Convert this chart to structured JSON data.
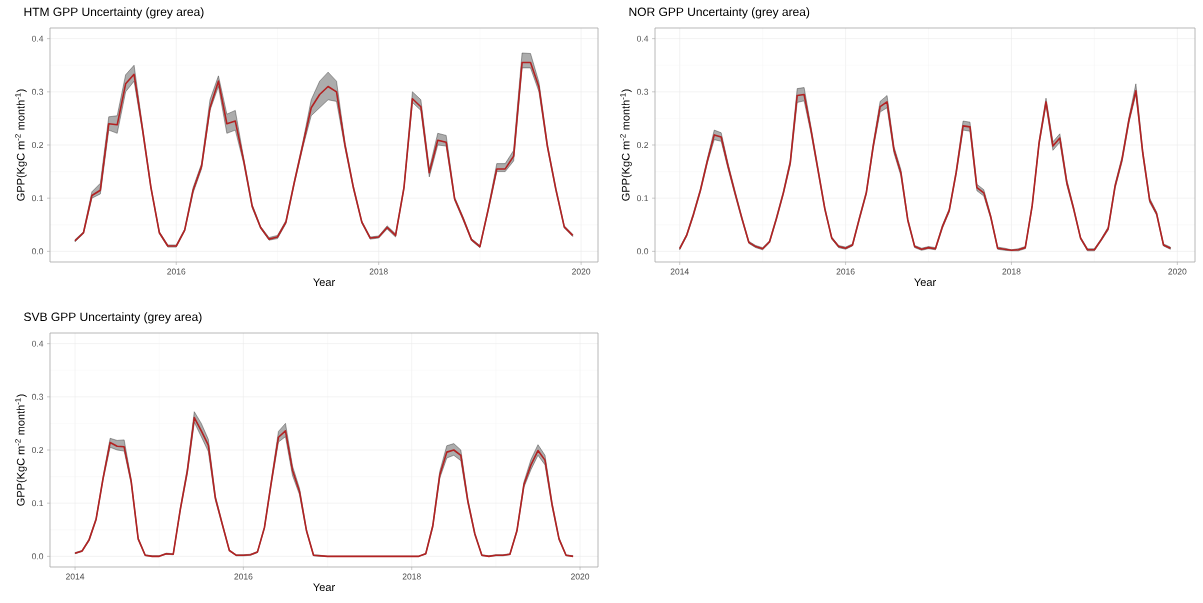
{
  "chart_data": [
    {
      "type": "line",
      "title": "HTM GPP Uncertainty (grey area)",
      "xlabel": "Year",
      "ylabel": "GPP(KgC m$^{-2}$ month$^{-1}$)",
      "x": [
        "2015-01",
        "2015-02",
        "2015-03",
        "2015-04",
        "2015-05",
        "2015-06",
        "2015-07",
        "2015-08",
        "2015-09",
        "2015-10",
        "2015-11",
        "2015-12",
        "2016-01",
        "2016-02",
        "2016-03",
        "2016-04",
        "2016-05",
        "2016-06",
        "2016-07",
        "2016-08",
        "2016-09",
        "2016-10",
        "2016-11",
        "2016-12",
        "2017-01",
        "2017-02",
        "2017-03",
        "2017-04",
        "2017-05",
        "2017-06",
        "2017-07",
        "2017-08",
        "2017-09",
        "2017-10",
        "2017-11",
        "2017-12",
        "2018-01",
        "2018-02",
        "2018-03",
        "2018-04",
        "2018-05",
        "2018-06",
        "2018-07",
        "2018-08",
        "2018-09",
        "2018-10",
        "2018-11",
        "2018-12",
        "2019-01",
        "2019-02",
        "2019-03",
        "2019-04",
        "2019-05",
        "2019-06",
        "2019-07",
        "2019-08",
        "2019-09",
        "2019-10",
        "2019-11",
        "2019-12"
      ],
      "series": [
        {
          "color": "#b22222",
          "values": [
            0.02,
            0.035,
            0.105,
            0.115,
            0.24,
            0.238,
            0.315,
            0.333,
            0.23,
            0.12,
            0.035,
            0.01,
            0.01,
            0.04,
            0.115,
            0.16,
            0.27,
            0.32,
            0.24,
            0.245,
            0.17,
            0.085,
            0.045,
            0.023,
            0.027,
            0.055,
            0.13,
            0.2,
            0.27,
            0.295,
            0.31,
            0.3,
            0.2,
            0.12,
            0.055,
            0.025,
            0.027,
            0.045,
            0.03,
            0.12,
            0.287,
            0.272,
            0.148,
            0.209,
            0.205,
            0.099,
            0.062,
            0.022,
            0.009,
            0.08,
            0.155,
            0.155,
            0.179,
            0.355,
            0.355,
            0.309,
            0.198,
            0.117,
            0.046,
            0.03
          ],
          "lower": [
            0.018,
            0.033,
            0.1,
            0.108,
            0.228,
            0.222,
            0.3,
            0.32,
            0.225,
            0.117,
            0.033,
            0.008,
            0.008,
            0.038,
            0.11,
            0.155,
            0.265,
            0.31,
            0.222,
            0.228,
            0.165,
            0.082,
            0.043,
            0.021,
            0.024,
            0.052,
            0.127,
            0.195,
            0.255,
            0.27,
            0.285,
            0.282,
            0.195,
            0.117,
            0.053,
            0.023,
            0.025,
            0.042,
            0.027,
            0.117,
            0.28,
            0.265,
            0.14,
            0.2,
            0.198,
            0.096,
            0.059,
            0.02,
            0.007,
            0.077,
            0.15,
            0.15,
            0.17,
            0.345,
            0.345,
            0.3,
            0.194,
            0.114,
            0.044,
            0.028
          ],
          "upper": [
            0.022,
            0.037,
            0.112,
            0.128,
            0.253,
            0.255,
            0.332,
            0.35,
            0.235,
            0.123,
            0.037,
            0.012,
            0.012,
            0.042,
            0.12,
            0.165,
            0.285,
            0.33,
            0.258,
            0.265,
            0.175,
            0.088,
            0.047,
            0.026,
            0.03,
            0.058,
            0.133,
            0.205,
            0.285,
            0.32,
            0.337,
            0.32,
            0.205,
            0.123,
            0.057,
            0.027,
            0.029,
            0.048,
            0.033,
            0.123,
            0.3,
            0.285,
            0.155,
            0.222,
            0.218,
            0.102,
            0.065,
            0.024,
            0.011,
            0.083,
            0.165,
            0.165,
            0.19,
            0.373,
            0.372,
            0.318,
            0.202,
            0.12,
            0.048,
            0.032
          ]
        }
      ],
      "xlim": [
        "2014-10-02",
        "2020-03-01"
      ],
      "xticks": [
        "2016",
        "2018",
        "2020"
      ],
      "ylim": [
        -0.02,
        0.42
      ],
      "yticks": [
        {
          "value": 0,
          "label": "0.0"
        },
        {
          "value": 0.1,
          "label": "0.1"
        },
        {
          "value": 0.2,
          "label": "0.2"
        },
        {
          "value": 0.3,
          "label": "0.3"
        },
        {
          "value": 0.4,
          "label": "0.4"
        }
      ],
      "grid": true
    },
    {
      "type": "line",
      "title": "NOR GPP Uncertainty (grey area)",
      "xlabel": "Year",
      "ylabel": "GPP(KgC m$^{-2}$ month$^{-1}$)",
      "x": [
        "2014-01",
        "2014-02",
        "2014-03",
        "2014-04",
        "2014-05",
        "2014-06",
        "2014-07",
        "2014-08",
        "2014-09",
        "2014-10",
        "2014-11",
        "2014-12",
        "2015-01",
        "2015-02",
        "2015-03",
        "2015-04",
        "2015-05",
        "2015-06",
        "2015-07",
        "2015-08",
        "2015-09",
        "2015-10",
        "2015-11",
        "2015-12",
        "2016-01",
        "2016-02",
        "2016-03",
        "2016-04",
        "2016-05",
        "2016-06",
        "2016-07",
        "2016-08",
        "2016-09",
        "2016-10",
        "2016-11",
        "2016-12",
        "2017-01",
        "2017-02",
        "2017-03",
        "2017-04",
        "2017-05",
        "2017-06",
        "2017-07",
        "2017-08",
        "2017-09",
        "2017-10",
        "2017-11",
        "2017-12",
        "2018-01",
        "2018-02",
        "2018-03",
        "2018-04",
        "2018-05",
        "2018-06",
        "2018-07",
        "2018-08",
        "2018-09",
        "2018-10",
        "2018-11",
        "2018-12",
        "2019-01",
        "2019-02",
        "2019-03",
        "2019-04",
        "2019-05",
        "2019-06",
        "2019-07",
        "2019-08",
        "2019-09",
        "2019-10",
        "2019-11",
        "2019-12"
      ],
      "series": [
        {
          "color": "#b22222",
          "values": [
            0.005,
            0.03,
            0.07,
            0.115,
            0.17,
            0.219,
            0.215,
            0.16,
            0.11,
            0.062,
            0.017,
            0.009,
            0.005,
            0.018,
            0.062,
            0.11,
            0.167,
            0.293,
            0.295,
            0.228,
            0.154,
            0.08,
            0.025,
            0.009,
            0.006,
            0.012,
            0.062,
            0.11,
            0.198,
            0.272,
            0.281,
            0.191,
            0.148,
            0.059,
            0.009,
            0.004,
            0.007,
            0.005,
            0.046,
            0.077,
            0.148,
            0.236,
            0.234,
            0.12,
            0.11,
            0.065,
            0.006,
            0.004,
            0.002,
            0.003,
            0.007,
            0.086,
            0.204,
            0.281,
            0.198,
            0.213,
            0.13,
            0.08,
            0.025,
            0.003,
            0.003,
            0.022,
            0.043,
            0.123,
            0.173,
            0.247,
            0.302,
            0.185,
            0.096,
            0.071,
            0.012,
            0.006
          ],
          "lower": [
            0.003,
            0.028,
            0.067,
            0.112,
            0.166,
            0.21,
            0.207,
            0.155,
            0.106,
            0.059,
            0.015,
            0.007,
            0.003,
            0.016,
            0.059,
            0.107,
            0.162,
            0.28,
            0.283,
            0.222,
            0.15,
            0.077,
            0.023,
            0.007,
            0.004,
            0.01,
            0.059,
            0.107,
            0.193,
            0.262,
            0.27,
            0.185,
            0.142,
            0.056,
            0.007,
            0.002,
            0.005,
            0.003,
            0.043,
            0.074,
            0.144,
            0.228,
            0.226,
            0.114,
            0.104,
            0.062,
            0.004,
            0.002,
            0.001,
            0.001,
            0.005,
            0.083,
            0.2,
            0.275,
            0.19,
            0.205,
            0.125,
            0.077,
            0.023,
            0.001,
            0.001,
            0.02,
            0.04,
            0.119,
            0.168,
            0.242,
            0.295,
            0.18,
            0.092,
            0.068,
            0.01,
            0.004
          ],
          "upper": [
            0.007,
            0.032,
            0.073,
            0.118,
            0.174,
            0.228,
            0.223,
            0.165,
            0.114,
            0.065,
            0.019,
            0.011,
            0.007,
            0.02,
            0.065,
            0.113,
            0.172,
            0.306,
            0.308,
            0.234,
            0.158,
            0.083,
            0.027,
            0.011,
            0.008,
            0.014,
            0.065,
            0.113,
            0.203,
            0.282,
            0.293,
            0.197,
            0.154,
            0.062,
            0.011,
            0.006,
            0.009,
            0.007,
            0.049,
            0.08,
            0.152,
            0.245,
            0.243,
            0.126,
            0.116,
            0.068,
            0.008,
            0.006,
            0.003,
            0.005,
            0.009,
            0.089,
            0.208,
            0.288,
            0.206,
            0.221,
            0.135,
            0.083,
            0.027,
            0.005,
            0.005,
            0.024,
            0.046,
            0.127,
            0.178,
            0.252,
            0.315,
            0.19,
            0.1,
            0.074,
            0.014,
            0.008
          ]
        }
      ],
      "xlim": [
        "2013-09-14",
        "2020-03-18"
      ],
      "xticks": [
        "2014",
        "2016",
        "2018",
        "2020"
      ],
      "ylim": [
        -0.02,
        0.42
      ],
      "yticks": [
        {
          "value": 0,
          "label": "0.0"
        },
        {
          "value": 0.1,
          "label": "0.1"
        },
        {
          "value": 0.2,
          "label": "0.2"
        },
        {
          "value": 0.3,
          "label": "0.3"
        },
        {
          "value": 0.4,
          "label": "0.4"
        }
      ],
      "grid": true
    },
    {
      "type": "line",
      "title": "SVB GPP Uncertainty (grey area)",
      "xlabel": "Year",
      "ylabel": "GPP(KgC m$^{-2}$ month$^{-1}$)",
      "x": [
        "2014-01",
        "2014-02",
        "2014-03",
        "2014-04",
        "2014-05",
        "2014-06",
        "2014-07",
        "2014-08",
        "2014-09",
        "2014-10",
        "2014-11",
        "2014-12",
        "2015-01",
        "2015-02",
        "2015-03",
        "2015-04",
        "2015-05",
        "2015-06",
        "2015-07",
        "2015-08",
        "2015-09",
        "2015-10",
        "2015-11",
        "2015-12",
        "2016-01",
        "2016-02",
        "2016-03",
        "2016-04",
        "2016-05",
        "2016-06",
        "2016-07",
        "2016-08",
        "2016-09",
        "2016-10",
        "2016-11",
        "2016-12",
        "2017-01",
        "2017-02",
        "2017-03",
        "2017-04",
        "2017-05",
        "2017-06",
        "2017-07",
        "2017-08",
        "2017-09",
        "2017-10",
        "2017-11",
        "2017-12",
        "2018-01",
        "2018-02",
        "2018-03",
        "2018-04",
        "2018-05",
        "2018-06",
        "2018-07",
        "2018-08",
        "2018-09",
        "2018-10",
        "2018-11",
        "2018-12",
        "2019-01",
        "2019-02",
        "2019-03",
        "2019-04",
        "2019-05",
        "2019-06",
        "2019-07",
        "2019-08",
        "2019-09",
        "2019-10",
        "2019-11",
        "2019-12"
      ],
      "series": [
        {
          "color": "#b22222",
          "values": [
            0.006,
            0.01,
            0.031,
            0.07,
            0.147,
            0.214,
            0.207,
            0.206,
            0.141,
            0.033,
            0.002,
            0,
            0,
            0.005,
            0.004,
            0.088,
            0.16,
            0.261,
            0.236,
            0.209,
            0.11,
            0.06,
            0.011,
            0.002,
            0.002,
            0.003,
            0.008,
            0.054,
            0.141,
            0.224,
            0.236,
            0.162,
            0.122,
            0.048,
            0.002,
            0.001,
            0,
            0,
            0,
            0,
            0,
            0,
            0,
            0,
            0,
            0,
            0,
            0,
            0,
            0,
            0.005,
            0.057,
            0.153,
            0.196,
            0.2,
            0.19,
            0.104,
            0.042,
            0.002,
            0,
            0.002,
            0.002,
            0.004,
            0.048,
            0.135,
            0.172,
            0.199,
            0.181,
            0.098,
            0.033,
            0.002,
            0
          ],
          "lower": [
            0.005,
            0.009,
            0.029,
            0.068,
            0.144,
            0.205,
            0.2,
            0.198,
            0.137,
            0.031,
            0.001,
            0,
            0,
            0.004,
            0.003,
            0.085,
            0.155,
            0.252,
            0.225,
            0.197,
            0.106,
            0.058,
            0.01,
            0.001,
            0.001,
            0.002,
            0.007,
            0.052,
            0.137,
            0.215,
            0.225,
            0.152,
            0.116,
            0.046,
            0.001,
            0,
            0,
            0,
            0,
            0,
            0,
            0,
            0,
            0,
            0,
            0,
            0,
            0,
            0,
            0,
            0.004,
            0.054,
            0.147,
            0.185,
            0.19,
            0.18,
            0.1,
            0.04,
            0.001,
            0,
            0.001,
            0.001,
            0.003,
            0.046,
            0.13,
            0.163,
            0.19,
            0.172,
            0.094,
            0.031,
            0.001,
            0
          ],
          "upper": [
            0.007,
            0.011,
            0.033,
            0.072,
            0.15,
            0.222,
            0.218,
            0.219,
            0.145,
            0.035,
            0.003,
            0.001,
            0.001,
            0.006,
            0.005,
            0.091,
            0.165,
            0.272,
            0.25,
            0.22,
            0.114,
            0.062,
            0.012,
            0.003,
            0.003,
            0.004,
            0.009,
            0.056,
            0.145,
            0.235,
            0.25,
            0.17,
            0.128,
            0.05,
            0.003,
            0.002,
            0,
            0,
            0,
            0,
            0,
            0,
            0,
            0,
            0,
            0,
            0,
            0,
            0,
            0,
            0.006,
            0.06,
            0.16,
            0.208,
            0.212,
            0.2,
            0.108,
            0.044,
            0.003,
            0.001,
            0.003,
            0.003,
            0.005,
            0.05,
            0.14,
            0.182,
            0.21,
            0.19,
            0.102,
            0.035,
            0.003,
            0.001
          ]
        }
      ],
      "xlim": [
        "2013-09-14",
        "2020-03-18"
      ],
      "xticks": [
        "2014",
        "2016",
        "2018",
        "2020"
      ],
      "ylim": [
        -0.02,
        0.42
      ],
      "yticks": [
        {
          "value": 0,
          "label": "0.0"
        },
        {
          "value": 0.1,
          "label": "0.1"
        },
        {
          "value": 0.2,
          "label": "0.2"
        },
        {
          "value": 0.3,
          "label": "0.3"
        },
        {
          "value": 0.4,
          "label": "0.4"
        }
      ],
      "grid": true
    }
  ]
}
